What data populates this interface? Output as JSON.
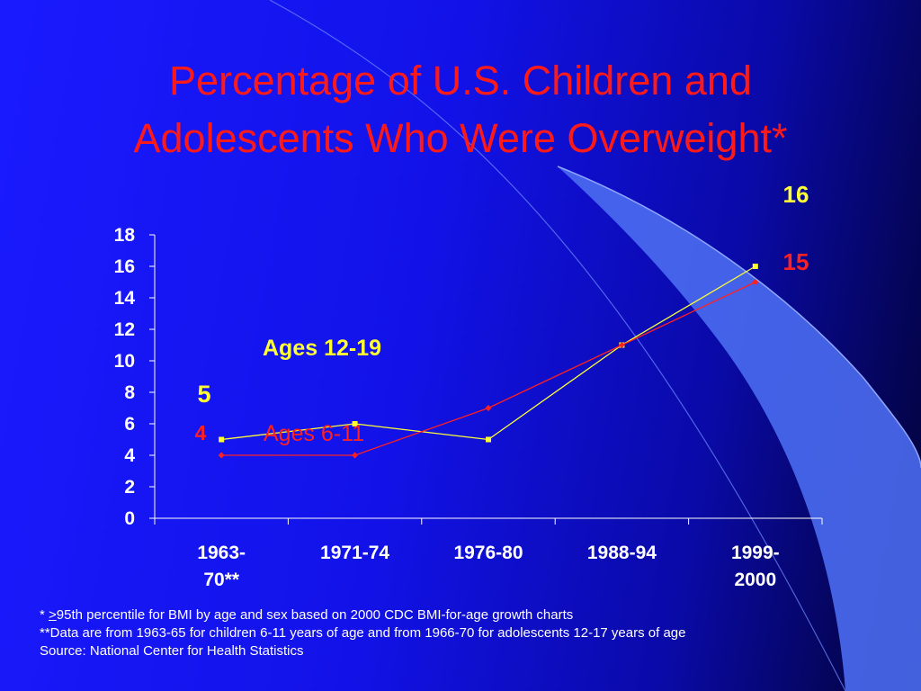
{
  "title": {
    "line1": "Percentage of U.S. Children and",
    "line2": "Adolescents Who Were Overweight*"
  },
  "colors": {
    "background": "#1414f0",
    "title": "#ff1a1a",
    "ages_12_19": "#ffff33",
    "ages_6_11": "#ff2020",
    "axis_text": "#ffffff"
  },
  "chart_data": {
    "type": "line",
    "categories": [
      [
        "1963-",
        "70**"
      ],
      [
        "1971-74"
      ],
      [
        "1976-80"
      ],
      [
        "1988-94"
      ],
      [
        "1999-",
        "2000"
      ]
    ],
    "series": [
      {
        "name": "Ages 12-19",
        "color": "#ffff33",
        "values": [
          5,
          6,
          5,
          11,
          16
        ],
        "marker": "square"
      },
      {
        "name": "Ages 6-11",
        "color": "#ff2020",
        "values": [
          4,
          4,
          7,
          11,
          15
        ],
        "marker": "diamond"
      }
    ],
    "ylim": [
      0,
      18
    ],
    "yticks": [
      0,
      2,
      4,
      6,
      8,
      10,
      12,
      14,
      16,
      18
    ],
    "grid": false,
    "annotations": [
      {
        "text": "16",
        "series": "Ages 12-19",
        "point": "last"
      },
      {
        "text": "15",
        "series": "Ages 6-11",
        "point": "last"
      },
      {
        "text": "5",
        "series": "Ages 12-19",
        "point": "first"
      },
      {
        "text": "4",
        "series": "Ages 6-11",
        "point": "first"
      },
      {
        "text": "Ages 12-19",
        "series": "Ages 12-19",
        "point": "label"
      },
      {
        "text": "Ages 6-11",
        "series": "Ages 6-11",
        "point": "label"
      }
    ]
  },
  "footnotes": {
    "line1_prefix": "* ",
    "line1_symbol": ">",
    "line1_text": "95th percentile for BMI by age and sex based on 2000 CDC BMI-for-age growth charts",
    "line2": "**Data are from 1963-65 for children 6-11 years of age and from 1966-70 for adolescents 12-17 years of age",
    "line3": "Source:   National Center for Health Statistics"
  }
}
